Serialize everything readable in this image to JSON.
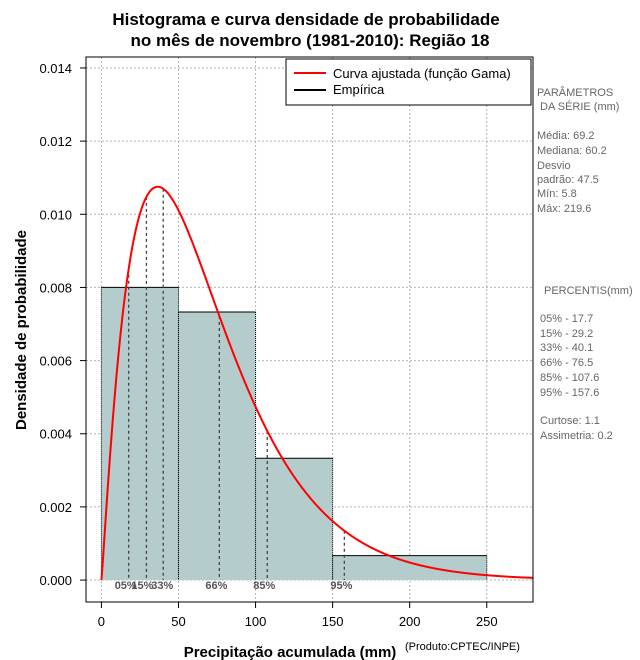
{
  "chart_data": {
    "type": "bar",
    "title_lines": [
      "Histograma e curva densidade de probabilidade",
      "no mês de novembro (1981-2010): Região 18"
    ],
    "xlabel": "Precipitação acumulada (mm)",
    "ylabel": "Densidade de probabilidade",
    "credit": "(Produto:CPTEC/INPE)",
    "xlim": [
      -10,
      280
    ],
    "ylim": [
      -0.0006,
      0.0143
    ],
    "xticks": [
      0,
      50,
      100,
      150,
      200,
      250
    ],
    "xtick_labels": [
      "0",
      "50",
      "100",
      "150",
      "200",
      "250"
    ],
    "yticks": [
      0.0,
      0.002,
      0.004,
      0.006,
      0.008,
      0.01,
      0.012,
      0.014
    ],
    "ytick_labels": [
      "0.000",
      "0.002",
      "0.004",
      "0.006",
      "0.008",
      "0.010",
      "0.012",
      "0.014"
    ],
    "bins": [
      {
        "from": 0,
        "to": 50,
        "density": 0.008
      },
      {
        "from": 50,
        "to": 100,
        "density": 0.00733
      },
      {
        "from": 100,
        "to": 150,
        "density": 0.00333
      },
      {
        "from": 150,
        "to": 250,
        "density": 0.000667
      }
    ],
    "fitted_curve": {
      "name": "Curva ajustada (função Gama)",
      "distribution": "gamma",
      "shape": 2.12,
      "scale": 32.6,
      "color": "#ff0000"
    },
    "empirical_name": "Empírica",
    "percentile_markers": [
      {
        "label": "05%",
        "value": 17.7
      },
      {
        "label": "15%",
        "value": 29.2
      },
      {
        "label": "33%",
        "value": 40.1
      },
      {
        "label": "66%",
        "value": 76.5
      },
      {
        "label": "85%",
        "value": 107.6
      },
      {
        "label": "95%",
        "value": 157.6
      }
    ],
    "grid": true,
    "legend_position": "top-right"
  },
  "colors": {
    "bar_fill": "#b4cccb",
    "curve": "#ff0000",
    "grid": "#b3b3b3",
    "side_text": "#666666"
  },
  "sidebar": {
    "params_title_1": "PARÂMETROS",
    "params_title_2": "DA SÉRIE (mm)",
    "media": "Média:  69.2",
    "mediana": "Mediana:  60.2",
    "desvio_1": "Desvio",
    "desvio_2": "padrão:  47.5",
    "min": "Mín:  5.8",
    "max": "Máx:  219.6",
    "percentis_title": "PERCENTIS(mm)",
    "p05": "05% -  17.7",
    "p15": "15% -  29.2",
    "p33": "33% -  40.1",
    "p66": "66% -  76.5",
    "p85": "85% -  107.6",
    "p95": "95% -  157.6",
    "curtose": "Curtose:  1.1",
    "assimetria": "Assimetria:  0.2"
  }
}
